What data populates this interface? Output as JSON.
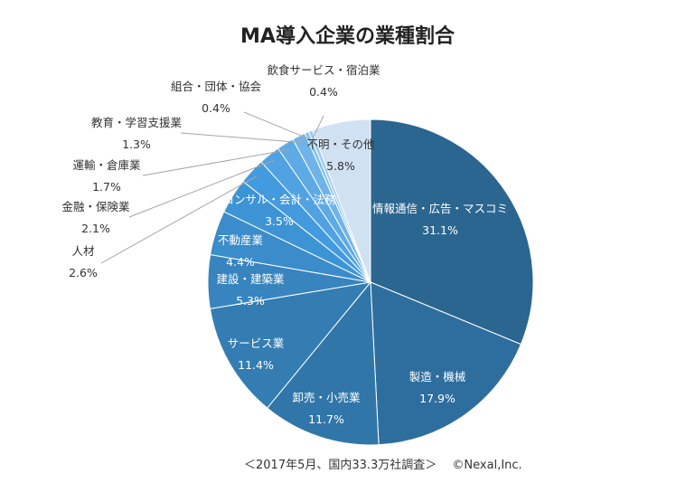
{
  "chart_data": {
    "type": "pie",
    "title": "MA導入企業の業種割合",
    "unit": "%",
    "slices": [
      {
        "label": "情報通信・広告・マスコミ",
        "value": 31.1,
        "value_text": "31.1%",
        "color": "#2b6690",
        "text_color": "#ffffff"
      },
      {
        "label": "製造・機械",
        "value": 17.9,
        "value_text": "17.9%",
        "color": "#2e6e9e",
        "text_color": "#ffffff"
      },
      {
        "label": "卸売・小売業",
        "value": 11.7,
        "value_text": "11.7%",
        "color": "#3176a8",
        "text_color": "#ffffff"
      },
      {
        "label": "サービス業",
        "value": 11.4,
        "value_text": "11.4%",
        "color": "#347db3",
        "text_color": "#ffffff"
      },
      {
        "label": "建設・建築業",
        "value": 5.3,
        "value_text": "5.3%",
        "color": "#3784bf",
        "text_color": "#ffffff"
      },
      {
        "label": "不動産業",
        "value": 4.4,
        "value_text": "4.4%",
        "color": "#3a8cca",
        "text_color": "#ffffff"
      },
      {
        "label": "コンサル・会計・法務",
        "value": 3.5,
        "value_text": "3.5%",
        "color": "#3d94d5",
        "text_color": "#ffffff"
      },
      {
        "label": "人材",
        "value": 2.6,
        "value_text": "2.6%",
        "color": "#449ade",
        "text_color": "#333333"
      },
      {
        "label": "金融・保険業",
        "value": 2.1,
        "value_text": "2.1%",
        "color": "#50a2e2",
        "text_color": "#333333"
      },
      {
        "label": "運輸・倉庫業",
        "value": 1.7,
        "value_text": "1.7%",
        "color": "#5eaae5",
        "text_color": "#333333"
      },
      {
        "label": "教育・学習支援業",
        "value": 1.3,
        "value_text": "1.3%",
        "color": "#6fb3e8",
        "text_color": "#333333"
      },
      {
        "label": "組合・団体・協会",
        "value": 0.4,
        "value_text": "0.4%",
        "color": "#86c0ec",
        "text_color": "#333333"
      },
      {
        "label": "飲食サービス・宿泊業",
        "value": 0.4,
        "value_text": "0.4%",
        "color": "#9dcbef",
        "text_color": "#333333"
      },
      {
        "label": "不明・その他",
        "value": 5.8,
        "value_text": "5.8%",
        "color": "#d0e1f2",
        "text_color": "#333333"
      }
    ]
  },
  "footer": {
    "note": "＜2017年5月、国内33.3万社調査＞　 ©Nexal,Inc."
  }
}
